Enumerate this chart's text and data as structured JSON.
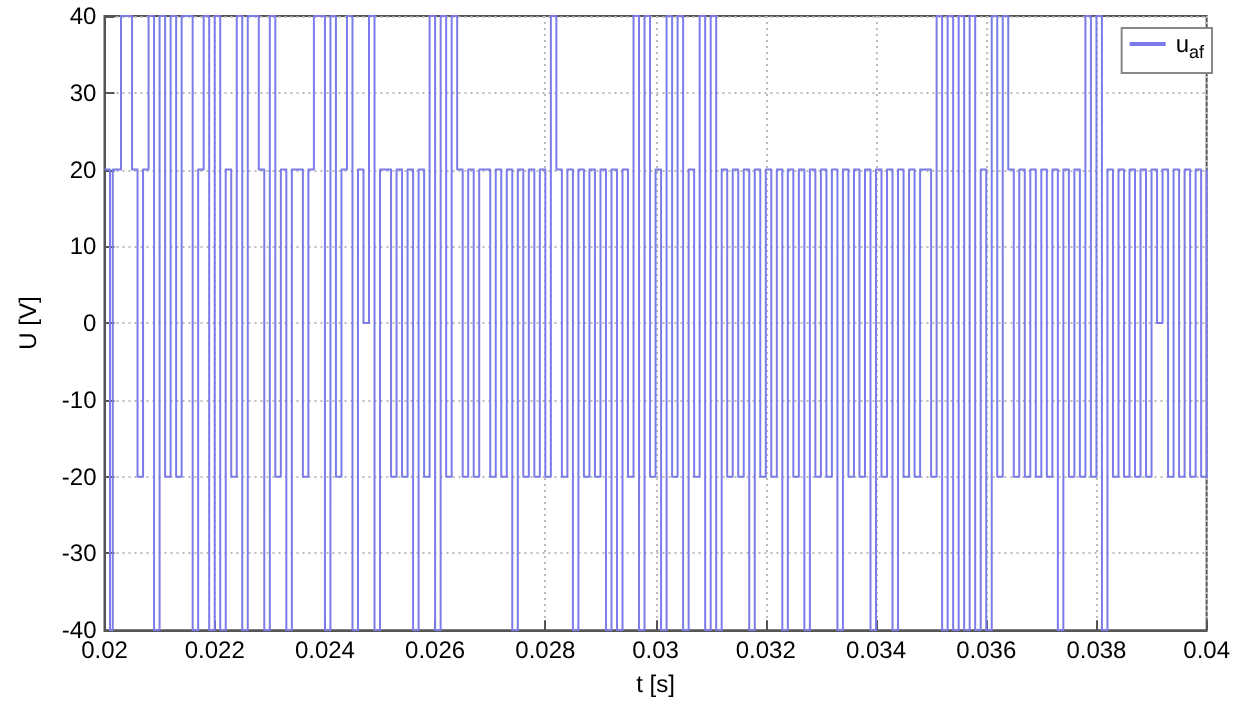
{
  "chart_data": {
    "type": "step",
    "xlabel": "t [s]",
    "ylabel": "U [V]",
    "xlim": [
      0.02,
      0.04
    ],
    "xticks": [
      0.02,
      0.022,
      0.024,
      0.026,
      0.028,
      0.03,
      0.032,
      0.034,
      0.036,
      0.038,
      0.04
    ],
    "ylim": [
      -40,
      40
    ],
    "yticks": [
      -40,
      -30,
      -20,
      -10,
      0,
      10,
      20,
      30,
      40
    ],
    "grid": true,
    "legend": "top right",
    "marker": "none",
    "line_style": "solid",
    "x": [
      0.02,
      0.0201,
      0.02015,
      0.0203,
      0.0205,
      0.0206,
      0.0207,
      0.0208,
      0.0209,
      0.021,
      0.0211,
      0.0212,
      0.0213,
      0.0214,
      0.0216,
      0.0217,
      0.0218,
      0.0219,
      0.022,
      0.0221,
      0.0222,
      0.0223,
      0.0224,
      0.0225,
      0.0226,
      0.0228,
      0.0229,
      0.023,
      0.0231,
      0.0232,
      0.0233,
      0.0234,
      0.0236,
      0.0237,
      0.0238,
      0.024,
      0.0241,
      0.0242,
      0.0243,
      0.0244,
      0.0245,
      0.0246,
      0.0247,
      0.0248,
      0.0249,
      0.025,
      0.0252,
      0.0253,
      0.0254,
      0.0255,
      0.0256,
      0.0257,
      0.0258,
      0.0259,
      0.026,
      0.0261,
      0.0262,
      0.0263,
      0.0264,
      0.0265,
      0.0266,
      0.0267,
      0.0268,
      0.027,
      0.0271,
      0.0272,
      0.0273,
      0.0274,
      0.0275,
      0.0276,
      0.0277,
      0.0278,
      0.0279,
      0.028,
      0.0281,
      0.0282,
      0.0283,
      0.0284,
      0.0285,
      0.0286,
      0.0287,
      0.0288,
      0.0289,
      0.029,
      0.0291,
      0.0292,
      0.0293,
      0.0294,
      0.0295,
      0.0296,
      0.0297,
      0.0298,
      0.0299,
      0.03,
      0.0301,
      0.0302,
      0.0303,
      0.0304,
      0.0305,
      0.0306,
      0.0307,
      0.0308,
      0.0309,
      0.031,
      0.0311,
      0.0312,
      0.0313,
      0.0314,
      0.0315,
      0.0316,
      0.0317,
      0.0318,
      0.0319,
      0.032,
      0.0321,
      0.0322,
      0.0323,
      0.0324,
      0.0325,
      0.0326,
      0.0327,
      0.0328,
      0.0329,
      0.033,
      0.0331,
      0.0332,
      0.0333,
      0.0334,
      0.0335,
      0.0336,
      0.0337,
      0.0338,
      0.0339,
      0.034,
      0.0341,
      0.0342,
      0.0343,
      0.0344,
      0.0345,
      0.0346,
      0.0347,
      0.0348,
      0.035,
      0.0351,
      0.0352,
      0.0353,
      0.0354,
      0.0355,
      0.0356,
      0.0357,
      0.0358,
      0.0359,
      0.036,
      0.0361,
      0.0362,
      0.0363,
      0.0364,
      0.0365,
      0.0366,
      0.0367,
      0.0368,
      0.0369,
      0.037,
      0.0371,
      0.0372,
      0.0373,
      0.0374,
      0.0375,
      0.0376,
      0.0377,
      0.0378,
      0.0379,
      0.038,
      0.0381,
      0.0382,
      0.0383,
      0.0384,
      0.0385,
      0.0386,
      0.0387,
      0.0388,
      0.0389,
      0.039,
      0.0391,
      0.0392,
      0.0393,
      0.0394,
      0.0395,
      0.0396,
      0.0397,
      0.0398,
      0.0399,
      0.04
    ],
    "series": [
      {
        "name": "u$_{af}$",
        "color": "#7b7bea",
        "values": [
          20,
          -40,
          20,
          40,
          20,
          -20,
          20,
          40,
          -40,
          40,
          -20,
          40,
          -20,
          40,
          -40,
          20,
          40,
          -40,
          40,
          -40,
          20,
          -20,
          40,
          -40,
          40,
          20,
          -40,
          40,
          -20,
          20,
          -40,
          20,
          -20,
          20,
          40,
          -40,
          40,
          -20,
          20,
          40,
          -40,
          20,
          0,
          40,
          -40,
          20,
          -20,
          20,
          -20,
          20,
          -40,
          20,
          -20,
          40,
          -40,
          40,
          -20,
          40,
          20,
          -20,
          20,
          -20,
          20,
          -20,
          20,
          -20,
          20,
          -40,
          20,
          -20,
          20,
          -20,
          20,
          -20,
          40,
          20,
          -20,
          20,
          -40,
          20,
          -20,
          20,
          -20,
          20,
          -40,
          20,
          -40,
          20,
          -20,
          40,
          -40,
          40,
          -20,
          20,
          -40,
          40,
          -20,
          40,
          -40,
          20,
          -20,
          40,
          -40,
          40,
          -40,
          20,
          -20,
          20,
          -20,
          20,
          -40,
          20,
          -20,
          20,
          -20,
          20,
          -40,
          20,
          -20,
          20,
          -40,
          20,
          -20,
          20,
          -20,
          20,
          -40,
          20,
          -20,
          20,
          -20,
          20,
          -40,
          20,
          -20,
          20,
          -40,
          20,
          -20,
          20,
          -20,
          20,
          -20,
          40,
          -40,
          40,
          -40,
          40,
          -40,
          40,
          -40,
          20,
          -40,
          40,
          -20,
          40,
          20,
          -20,
          20,
          -20,
          20,
          -20,
          20,
          -20,
          20,
          -40,
          20,
          -20,
          20,
          -20,
          40,
          -20,
          40,
          -40,
          20,
          -20,
          20,
          -20,
          20,
          -20,
          20,
          -20,
          20,
          0,
          20,
          -20,
          20,
          -20,
          20,
          -20,
          20,
          -20,
          20
        ]
      }
    ]
  }
}
